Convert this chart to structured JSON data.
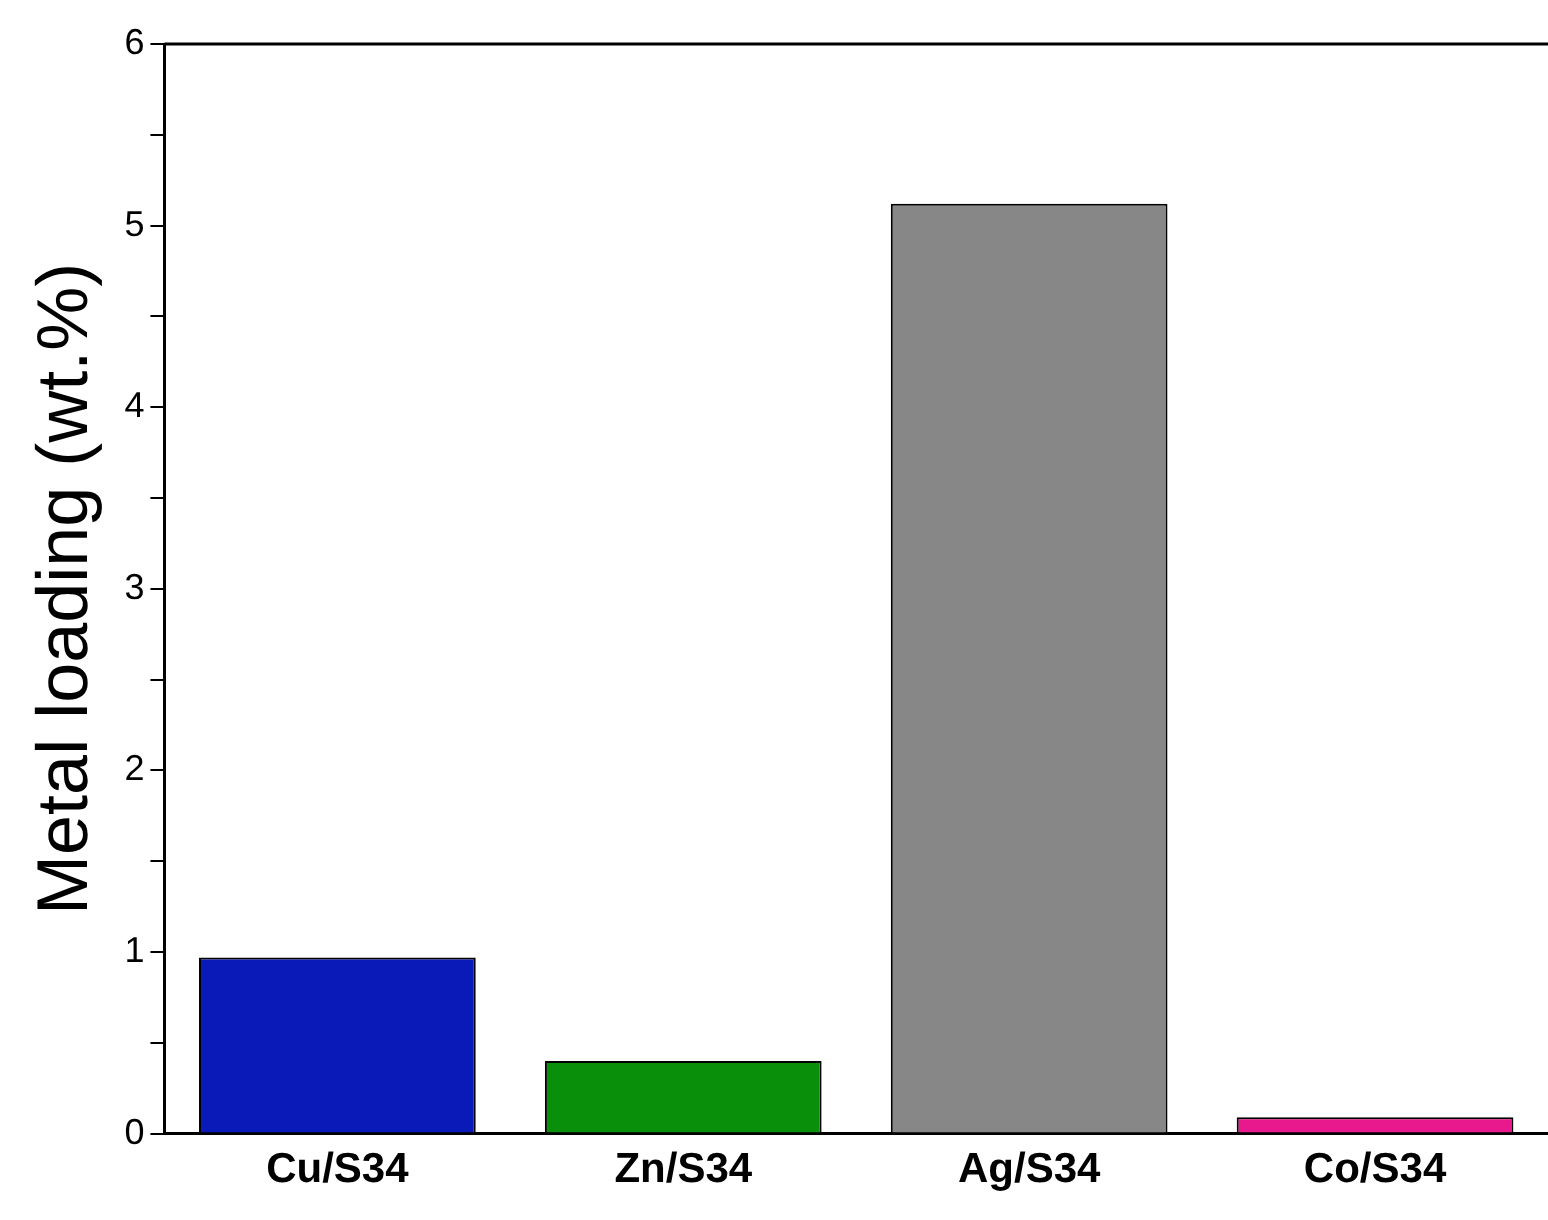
{
  "chart_data": {
    "type": "bar",
    "ylabel": "Metal loading (wt.%)",
    "categories": [
      "Cu/S34",
      "Zn/S34",
      "Ag/S34",
      "Co/S34"
    ],
    "values": [
      0.97,
      0.4,
      5.12,
      0.09
    ],
    "colors": [
      "#0a1ab8",
      "#0a8f0a",
      "#878787",
      "#e8198c"
    ],
    "ylim": [
      0,
      6
    ],
    "yticks": [
      0,
      {
        "value": 0.5,
        "label": null
      },
      1,
      {
        "value": 1.5,
        "label": null
      },
      2,
      {
        "value": 2.5,
        "label": null
      },
      3,
      {
        "value": 3.5,
        "label": null
      },
      4,
      {
        "value": 4.5,
        "label": null
      },
      5,
      {
        "value": 5.5,
        "label": null
      },
      6
    ],
    "grid": false,
    "legend": false
  }
}
